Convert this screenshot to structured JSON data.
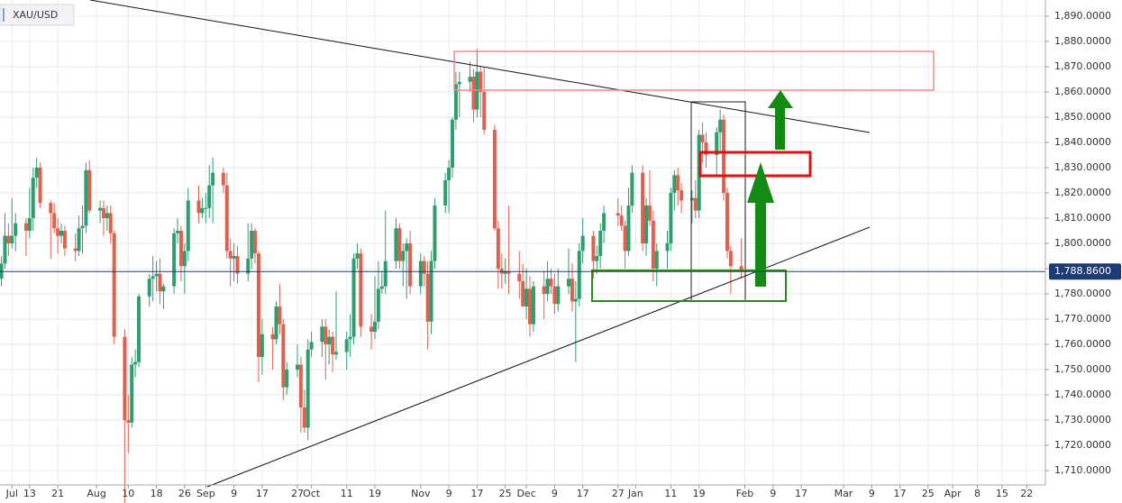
{
  "chart_data": {
    "type": "candlestick",
    "title": "XAU/USD",
    "up_color": "#2e9e6e",
    "down_color": "#e0604f",
    "grid": true,
    "grid_color": "#e6ebf1",
    "price_line_color": "#1f3b73",
    "xlim": [
      3.6,
      300.3
    ],
    "ylim": [
      1703.6,
      1896.4
    ],
    "xticks": [
      {
        "value": 7,
        "label": "Jul"
      },
      {
        "value": 12,
        "label": "13"
      },
      {
        "value": 20,
        "label": "21"
      },
      {
        "value": 31,
        "label": "Aug"
      },
      {
        "value": 40,
        "label": "10"
      },
      {
        "value": 48,
        "label": "18"
      },
      {
        "value": 56,
        "label": "26"
      },
      {
        "value": 62,
        "label": "Sep"
      },
      {
        "value": 70,
        "label": "9"
      },
      {
        "value": 78,
        "label": "17"
      },
      {
        "value": 88,
        "label": "27"
      },
      {
        "value": 92,
        "label": "Oct"
      },
      {
        "value": 102,
        "label": "11"
      },
      {
        "value": 110,
        "label": "19"
      },
      {
        "value": 123,
        "label": "Nov"
      },
      {
        "value": 131,
        "label": "9"
      },
      {
        "value": 139,
        "label": "17"
      },
      {
        "value": 147,
        "label": "25"
      },
      {
        "value": 153,
        "label": "Dec"
      },
      {
        "value": 161,
        "label": "9"
      },
      {
        "value": 169,
        "label": "17"
      },
      {
        "value": 179,
        "label": "27"
      },
      {
        "value": 184,
        "label": "Jan"
      },
      {
        "value": 194,
        "label": "11"
      },
      {
        "value": 202,
        "label": "19"
      },
      {
        "value": 215,
        "label": "Feb"
      },
      {
        "value": 223,
        "label": "9"
      },
      {
        "value": 231,
        "label": "17"
      },
      {
        "value": 243,
        "label": "Mar"
      },
      {
        "value": 251,
        "label": "9"
      },
      {
        "value": 259,
        "label": "17"
      },
      {
        "value": 267,
        "label": "25"
      },
      {
        "value": 274,
        "label": "Apr"
      },
      {
        "value": 281,
        "label": "8"
      },
      {
        "value": 288,
        "label": "15"
      },
      {
        "value": 295,
        "label": "22"
      }
    ],
    "yticks": [
      {
        "value": 1710,
        "label": "1,710.0000"
      },
      {
        "value": 1720,
        "label": "1,720.0000"
      },
      {
        "value": 1730,
        "label": "1,730.0000"
      },
      {
        "value": 1740,
        "label": "1,740.0000"
      },
      {
        "value": 1750,
        "label": "1,750.0000"
      },
      {
        "value": 1760,
        "label": "1,760.0000"
      },
      {
        "value": 1770,
        "label": "1,770.0000"
      },
      {
        "value": 1780,
        "label": "1,780.0000"
      },
      {
        "value": 1790,
        "label": "1,790.0000"
      },
      {
        "value": 1800,
        "label": "1,800.0000"
      },
      {
        "value": 1810,
        "label": "1,810.0000"
      },
      {
        "value": 1820,
        "label": "1,820.0000"
      },
      {
        "value": 1830,
        "label": "1,830.0000"
      },
      {
        "value": 1840,
        "label": "1,840.0000"
      },
      {
        "value": 1850,
        "label": "1,850.0000"
      },
      {
        "value": 1860,
        "label": "1,860.0000"
      },
      {
        "value": 1870,
        "label": "1,870.0000"
      },
      {
        "value": 1880,
        "label": "1,880.0000"
      },
      {
        "value": 1890,
        "label": "1,890.0000"
      }
    ],
    "last_price": {
      "value": 1788.86,
      "label": "1,788.8600"
    },
    "candles": [
      [
        4,
        1786,
        1795,
        1783,
        1792
      ],
      [
        5,
        1792,
        1812,
        1790,
        1803
      ],
      [
        6,
        1803,
        1808,
        1795,
        1800
      ],
      [
        7,
        1800,
        1818,
        1798,
        1803
      ],
      [
        8,
        1803,
        1812,
        1797,
        1808
      ],
      [
        11,
        1808,
        1810,
        1795,
        1805
      ],
      [
        12,
        1805,
        1822,
        1802,
        1810
      ],
      [
        13,
        1810,
        1830,
        1805,
        1826
      ],
      [
        14,
        1826,
        1834,
        1822,
        1830
      ],
      [
        15,
        1830,
        1832,
        1814,
        1816
      ],
      [
        18,
        1816,
        1817,
        1794,
        1812
      ],
      [
        19,
        1812,
        1816,
        1804,
        1806
      ],
      [
        20,
        1806,
        1810,
        1796,
        1803
      ],
      [
        21,
        1803,
        1808,
        1800,
        1805
      ],
      [
        22,
        1805,
        1807,
        1795,
        1798
      ],
      [
        25,
        1798,
        1804,
        1793,
        1797
      ],
      [
        26,
        1797,
        1811,
        1795,
        1806
      ],
      [
        27,
        1806,
        1815,
        1796,
        1807
      ],
      [
        28,
        1807,
        1832,
        1804,
        1829
      ],
      [
        29,
        1829,
        1833,
        1812,
        1813
      ],
      [
        32,
        1813,
        1817,
        1808,
        1814
      ],
      [
        33,
        1814,
        1817,
        1803,
        1810
      ],
      [
        34,
        1810,
        1815,
        1805,
        1812
      ],
      [
        35,
        1812,
        1815,
        1800,
        1804
      ],
      [
        36,
        1804,
        1805,
        1760,
        1763
      ],
      [
        39,
        1763,
        1766,
        1690,
        1730
      ],
      [
        40,
        1730,
        1740,
        1717,
        1729
      ],
      [
        41,
        1729,
        1755,
        1727,
        1752
      ],
      [
        42,
        1752,
        1758,
        1747,
        1753
      ],
      [
        43,
        1753,
        1780,
        1751,
        1779
      ],
      [
        46,
        1779,
        1788,
        1775,
        1786
      ],
      [
        47,
        1786,
        1795,
        1777,
        1787
      ],
      [
        48,
        1787,
        1793,
        1781,
        1788
      ],
      [
        49,
        1788,
        1794,
        1776,
        1781
      ],
      [
        50,
        1781,
        1784,
        1774,
        1783
      ],
      [
        53,
        1783,
        1806,
        1780,
        1804
      ],
      [
        54,
        1804,
        1810,
        1800,
        1805
      ],
      [
        55,
        1805,
        1807,
        1785,
        1791
      ],
      [
        56,
        1791,
        1800,
        1780,
        1797
      ],
      [
        57,
        1797,
        1822,
        1793,
        1817
      ],
      [
        60,
        1817,
        1823,
        1808,
        1812
      ],
      [
        61,
        1812,
        1818,
        1810,
        1814
      ],
      [
        62,
        1814,
        1820,
        1808,
        1814
      ],
      [
        63,
        1814,
        1831,
        1810,
        1823
      ],
      [
        64,
        1823,
        1834,
        1808,
        1828
      ],
      [
        67,
        1828,
        1830,
        1820,
        1823
      ],
      [
        68,
        1823,
        1828,
        1794,
        1797
      ],
      [
        69,
        1797,
        1802,
        1783,
        1794
      ],
      [
        70,
        1794,
        1800,
        1785,
        1795
      ],
      [
        71,
        1795,
        1799,
        1784,
        1788
      ],
      [
        74,
        1788,
        1808,
        1785,
        1794
      ],
      [
        75,
        1794,
        1808,
        1790,
        1805
      ],
      [
        76,
        1805,
        1806,
        1792,
        1796
      ],
      [
        77,
        1796,
        1797,
        1745,
        1755
      ],
      [
        78,
        1755,
        1770,
        1748,
        1764
      ],
      [
        81,
        1764,
        1767,
        1750,
        1762
      ],
      [
        82,
        1762,
        1777,
        1760,
        1775
      ],
      [
        83,
        1775,
        1784,
        1764,
        1768
      ],
      [
        84,
        1768,
        1770,
        1738,
        1743
      ],
      [
        85,
        1743,
        1753,
        1740,
        1750
      ],
      [
        88,
        1750,
        1760,
        1747,
        1752
      ],
      [
        89,
        1752,
        1755,
        1725,
        1735
      ],
      [
        90,
        1735,
        1742,
        1725,
        1727
      ],
      [
        91,
        1727,
        1762,
        1722,
        1758
      ],
      [
        92,
        1758,
        1765,
        1755,
        1761
      ],
      [
        95,
        1761,
        1770,
        1755,
        1767
      ],
      [
        96,
        1767,
        1770,
        1746,
        1760
      ],
      [
        97,
        1760,
        1766,
        1752,
        1763
      ],
      [
        98,
        1763,
        1765,
        1749,
        1756
      ],
      [
        99,
        1756,
        1781,
        1754,
        1757
      ],
      [
        102,
        1757,
        1765,
        1750,
        1762
      ],
      [
        103,
        1762,
        1772,
        1755,
        1763
      ],
      [
        104,
        1763,
        1796,
        1760,
        1794
      ],
      [
        105,
        1794,
        1800,
        1790,
        1796
      ],
      [
        106,
        1796,
        1798,
        1763,
        1767
      ],
      [
        109,
        1767,
        1772,
        1758,
        1765
      ],
      [
        110,
        1765,
        1787,
        1762,
        1769
      ],
      [
        111,
        1769,
        1793,
        1766,
        1782
      ],
      [
        112,
        1782,
        1789,
        1780,
        1783
      ],
      [
        113,
        1783,
        1813,
        1780,
        1793
      ],
      [
        116,
        1793,
        1810,
        1790,
        1806
      ],
      [
        117,
        1806,
        1808,
        1790,
        1793
      ],
      [
        118,
        1793,
        1800,
        1783,
        1797
      ],
      [
        119,
        1797,
        1802,
        1778,
        1800
      ],
      [
        120,
        1800,
        1805,
        1780,
        1783
      ],
      [
        123,
        1783,
        1796,
        1780,
        1793
      ],
      [
        124,
        1793,
        1795,
        1783,
        1788
      ],
      [
        125,
        1788,
        1793,
        1758,
        1769
      ],
      [
        126,
        1769,
        1797,
        1764,
        1793
      ],
      [
        127,
        1793,
        1818,
        1790,
        1815
      ],
      [
        130,
        1815,
        1828,
        1812,
        1825
      ],
      [
        131,
        1825,
        1833,
        1812,
        1830
      ],
      [
        132,
        1830,
        1850,
        1826,
        1849
      ],
      [
        133,
        1849,
        1868,
        1845,
        1863
      ],
      [
        134,
        1863,
        1868,
        1850,
        1864
      ],
      [
        137,
        1864,
        1872,
        1860,
        1866
      ],
      [
        138,
        1866,
        1869,
        1848,
        1853
      ],
      [
        139,
        1853,
        1877,
        1850,
        1868
      ],
      [
        140,
        1868,
        1870,
        1850,
        1860
      ],
      [
        141,
        1860,
        1870,
        1843,
        1845
      ],
      [
        144,
        1845,
        1847,
        1805,
        1806
      ],
      [
        145,
        1806,
        1809,
        1782,
        1790
      ],
      [
        146,
        1790,
        1796,
        1782,
        1788
      ],
      [
        147,
        1788,
        1794,
        1784,
        1789
      ],
      [
        148,
        1789,
        1815,
        1780,
        1788
      ],
      [
        151,
        1788,
        1797,
        1778,
        1785
      ],
      [
        152,
        1785,
        1792,
        1775,
        1775
      ],
      [
        153,
        1775,
        1790,
        1770,
        1782
      ],
      [
        154,
        1782,
        1787,
        1763,
        1768
      ],
      [
        155,
        1768,
        1785,
        1765,
        1783
      ],
      [
        158,
        1783,
        1789,
        1770,
        1780
      ],
      [
        159,
        1780,
        1793,
        1777,
        1786
      ],
      [
        160,
        1786,
        1790,
        1780,
        1783
      ],
      [
        161,
        1783,
        1788,
        1772,
        1776
      ],
      [
        162,
        1776,
        1790,
        1773,
        1783
      ],
      [
        165,
        1783,
        1798,
        1780,
        1786
      ],
      [
        166,
        1786,
        1792,
        1773,
        1777
      ],
      [
        167,
        1777,
        1785,
        1753,
        1778
      ],
      [
        168,
        1778,
        1800,
        1775,
        1797
      ],
      [
        169,
        1797,
        1810,
        1792,
        1803
      ],
      [
        172,
        1803,
        1805,
        1786,
        1793
      ],
      [
        173,
        1793,
        1799,
        1788,
        1795
      ],
      [
        174,
        1795,
        1808,
        1790,
        1805
      ],
      [
        175,
        1805,
        1815,
        1800,
        1812
      ],
      [
        179,
        1812,
        1818,
        1807,
        1811
      ],
      [
        180,
        1811,
        1815,
        1805,
        1807
      ],
      [
        181,
        1807,
        1809,
        1790,
        1797
      ],
      [
        182,
        1797,
        1822,
        1795,
        1815
      ],
      [
        183,
        1815,
        1831,
        1812,
        1828
      ],
      [
        186,
        1828,
        1831,
        1797,
        1800
      ],
      [
        187,
        1800,
        1818,
        1795,
        1815
      ],
      [
        188,
        1815,
        1829,
        1807,
        1809
      ],
      [
        189,
        1809,
        1813,
        1785,
        1790
      ],
      [
        190,
        1790,
        1800,
        1783,
        1797
      ],
      [
        193,
        1797,
        1805,
        1790,
        1800
      ],
      [
        194,
        1800,
        1822,
        1797,
        1820
      ],
      [
        195,
        1820,
        1829,
        1813,
        1827
      ],
      [
        196,
        1827,
        1830,
        1815,
        1821
      ],
      [
        197,
        1821,
        1824,
        1812,
        1817
      ],
      [
        200,
        1817,
        1821,
        1808,
        1818
      ],
      [
        201,
        1818,
        1825,
        1810,
        1813
      ],
      [
        202,
        1813,
        1845,
        1810,
        1843
      ],
      [
        203,
        1843,
        1848,
        1832,
        1840
      ],
      [
        204,
        1840,
        1844,
        1830,
        1835
      ],
      [
        207,
        1835,
        1846,
        1827,
        1844
      ],
      [
        208,
        1844,
        1853,
        1836,
        1849
      ],
      [
        209,
        1849,
        1851,
        1817,
        1820
      ],
      [
        210,
        1820,
        1822,
        1794,
        1797
      ],
      [
        211,
        1797,
        1799,
        1780,
        1791
      ],
      [
        214,
        1791,
        1802,
        1786,
        1788.86
      ]
    ]
  }
}
